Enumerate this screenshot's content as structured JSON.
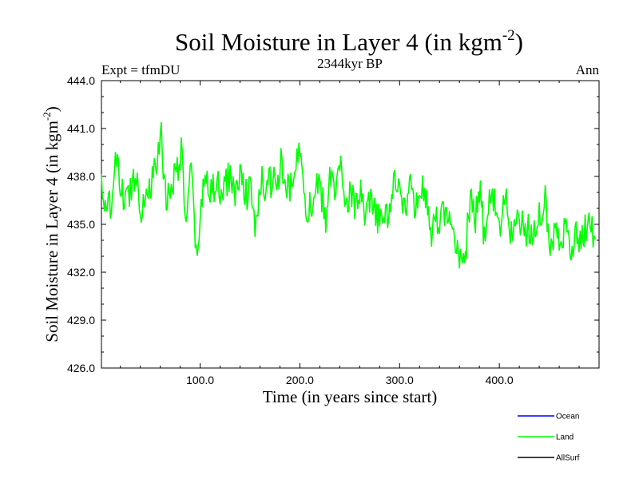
{
  "chart_data": {
    "type": "line",
    "title": "Soil Moisture in Layer 4 (in kgm",
    "title_superscript": "-2",
    "title_suffix": ")",
    "subtitle_center": "2344kyr BP",
    "subtitle_left": "Expt = tfmDU",
    "subtitle_right": "Ann",
    "xlabel": "Time (in years since start)",
    "ylabel": "Soil Moisture in Layer 4 (in kgm",
    "ylabel_superscript": "-2",
    "ylabel_suffix": ")",
    "xlim": [
      1,
      500
    ],
    "ylim": [
      426.0,
      444.0
    ],
    "xticks": [
      100,
      200,
      300,
      400
    ],
    "xtick_labels": [
      "100.0",
      "200.0",
      "300.0",
      "400.0"
    ],
    "yticks": [
      426,
      429,
      432,
      435,
      438,
      441,
      444
    ],
    "ytick_labels": [
      "426.0",
      "429.0",
      "432.0",
      "435.0",
      "438.0",
      "441.0",
      "444.0"
    ],
    "legend": [
      {
        "name": "Ocean",
        "color": "#0000ff"
      },
      {
        "name": "Land",
        "color": "#00ff00"
      },
      {
        "name": "AllSurf",
        "color": "#000000"
      }
    ],
    "series": [
      {
        "name": "Land",
        "color": "#00ff00",
        "x_start": 1,
        "x_step": 5,
        "values": [
          437.8,
          435.2,
          436.8,
          438.9,
          437.0,
          436.4,
          437.5,
          438.2,
          436.1,
          437.0,
          437.6,
          438.6,
          440.6,
          436.3,
          437.6,
          438.3,
          439.5,
          435.1,
          438.4,
          432.8,
          436.0,
          438.3,
          437.0,
          437.5,
          436.8,
          437.7,
          438.0,
          436.8,
          438.4,
          437.0,
          437.0,
          434.6,
          437.6,
          437.4,
          437.7,
          437.4,
          438.7,
          437.0,
          437.3,
          438.6,
          440.3,
          436.1,
          436.1,
          437.4,
          436.9,
          435.4,
          438.1,
          437.3,
          438.4,
          436.7,
          437.0,
          436.0,
          436.7,
          435.4,
          436.3,
          435.4,
          435.2,
          435.6,
          436.0,
          438.0,
          437.2,
          435.7,
          437.8,
          435.5,
          437.8,
          436.6,
          434.3,
          434.9,
          435.5,
          435.7,
          434.9,
          433.6,
          432.9,
          433.3,
          436.6,
          435.4,
          436.7,
          433.4,
          437.2,
          435.9,
          434.9,
          436.7,
          434.6,
          435.2,
          434.8,
          434.7,
          434.5,
          434.9,
          435.8,
          436.4,
          434.0,
          434.5,
          434.3,
          434.8,
          433.5,
          434.4,
          434.3,
          434.5,
          435.1,
          434.1
        ]
      }
    ]
  }
}
